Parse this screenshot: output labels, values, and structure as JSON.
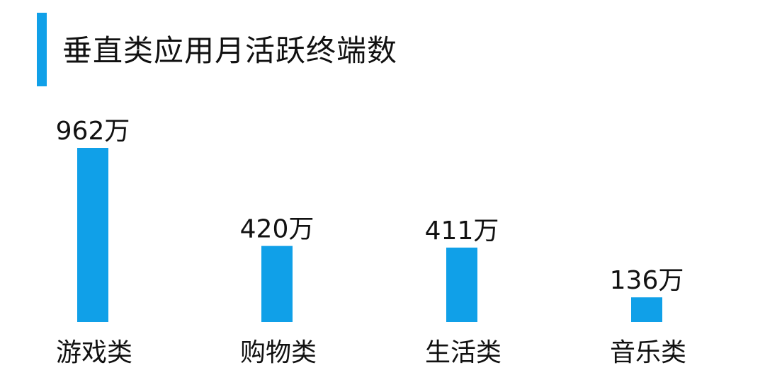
{
  "title": "垂直类应用月活跃终端数",
  "colors": {
    "accent": "#10a0e8",
    "bar": "#10a0e8"
  },
  "chart_data": {
    "type": "bar",
    "title": "垂直类应用月活跃终端数",
    "categories": [
      "游戏类",
      "购物类",
      "生活类",
      "音乐类"
    ],
    "values": [
      962,
      420,
      411,
      136
    ],
    "value_labels": [
      "962万",
      "420万",
      "411万",
      "136万"
    ],
    "xlabel": "",
    "ylabel": "",
    "grid": false
  }
}
